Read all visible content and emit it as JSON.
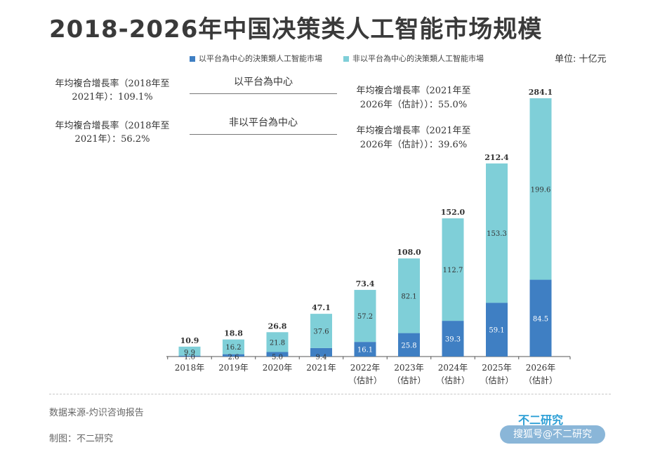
{
  "title": "2018-2026年中国决策类人工智能市场规模",
  "unit": "单位: 十亿元",
  "legend": {
    "platform": "以平台為中心的決策類人工智能市場",
    "non_platform": "非以平台為中心的決策類人工智能市場"
  },
  "colors": {
    "platform": "#3f7fc3",
    "non_platform": "#7fcfd8"
  },
  "cagr": {
    "group_platform": "以平台為中心",
    "group_non_platform": "非以平台為中心",
    "left_platform_1": "年均複合增長率（2018年至",
    "left_platform_2": "2021年）：109.1%",
    "left_non_platform_1": "年均複合增長率（2018年至",
    "left_non_platform_2": "2021年）：56.2%",
    "right_platform_1": "年均複合增長率（2021年至",
    "right_platform_2": "2026年（估計））：55.0%",
    "right_non_platform_1": "年均複合增長率（2021年至",
    "right_non_platform_2": "2026年（估計））：39.6%"
  },
  "chart_data": {
    "type": "bar",
    "stacked": true,
    "title": "2018-2026年中国决策类人工智能市场规模",
    "ylabel": "单位: 十亿元",
    "categories": [
      "2018年",
      "2019年",
      "2020年",
      "2021年",
      "2022年",
      "2023年",
      "2024年",
      "2025年",
      "2026年"
    ],
    "category_sublabels": [
      "",
      "",
      "",
      "",
      "（估計）",
      "（估計）",
      "（估計）",
      "（估計）",
      "（估計）"
    ],
    "series": [
      {
        "name": "以平台為中心的決策類人工智能市場",
        "values": [
          1.0,
          2.6,
          5.0,
          9.4,
          16.1,
          25.8,
          39.3,
          59.1,
          84.5
        ]
      },
      {
        "name": "非以平台為中心的決策類人工智能市場",
        "values": [
          9.9,
          16.2,
          21.8,
          37.6,
          57.2,
          82.1,
          112.7,
          153.3,
          199.6
        ]
      }
    ],
    "totals": [
      10.9,
      18.8,
      26.8,
      47.1,
      73.4,
      108.0,
      152.0,
      212.4,
      284.1
    ],
    "ylim": [
      0,
      290
    ]
  },
  "footer": {
    "source": "数据来源-灼识咨询报告",
    "maker": "制图：不二研究",
    "brand": "不二研究",
    "watermark": "搜狐号@不二研究"
  }
}
